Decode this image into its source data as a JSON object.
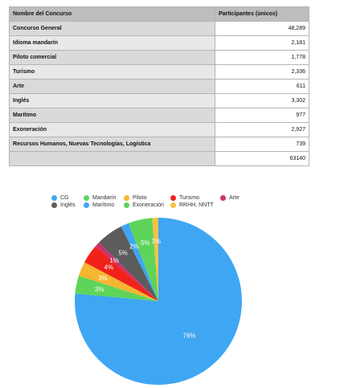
{
  "table": {
    "header_name": "Nombre del Concurso",
    "header_value": "Participantes (únicos)",
    "rows": [
      {
        "name": "Concurso General",
        "value": "48,289"
      },
      {
        "name": "Idioma mandarín",
        "value": "2,181"
      },
      {
        "name": "Piloto comercial",
        "value": "1,778"
      },
      {
        "name": "Turismo",
        "value": "2,336"
      },
      {
        "name": "Arte",
        "value": "611"
      },
      {
        "name": "Inglés",
        "value": "3,302"
      },
      {
        "name": "Marítimo",
        "value": "977"
      },
      {
        "name": "Exoneración",
        "value": "2,927"
      },
      {
        "name": "Recursos Humanos, Nuevas Tecnologías, Logística",
        "value": "739"
      }
    ],
    "total_label": "",
    "total_value": "63140"
  },
  "chart_data": {
    "type": "pie",
    "title": "",
    "slices": [
      {
        "label": "CG",
        "value": 48289,
        "pct_label": "76%",
        "color": "#3ea6f3"
      },
      {
        "label": "Mandarín",
        "value": 2181,
        "pct_label": "3%",
        "color": "#5fd45a"
      },
      {
        "label": "Piloto",
        "value": 1778,
        "pct_label": "3%",
        "color": "#f6b630"
      },
      {
        "label": "Turismo",
        "value": 2336,
        "pct_label": "4%",
        "color": "#f0221a"
      },
      {
        "label": "Arte",
        "value": 611,
        "pct_label": "1%",
        "color": "#c8336e"
      },
      {
        "label": "Inglés",
        "value": 3302,
        "pct_label": "5%",
        "color": "#5c5c5c"
      },
      {
        "label": "Marítimo",
        "value": 977,
        "pct_label": "2%",
        "color": "#3ea6f3"
      },
      {
        "label": "Exoneración",
        "value": 2927,
        "pct_label": "5%",
        "color": "#5fd45a"
      },
      {
        "label": "RRHH, NNTT",
        "value": 739,
        "pct_label": "1%",
        "color": "#f6c244"
      }
    ],
    "legend_position": "top"
  }
}
